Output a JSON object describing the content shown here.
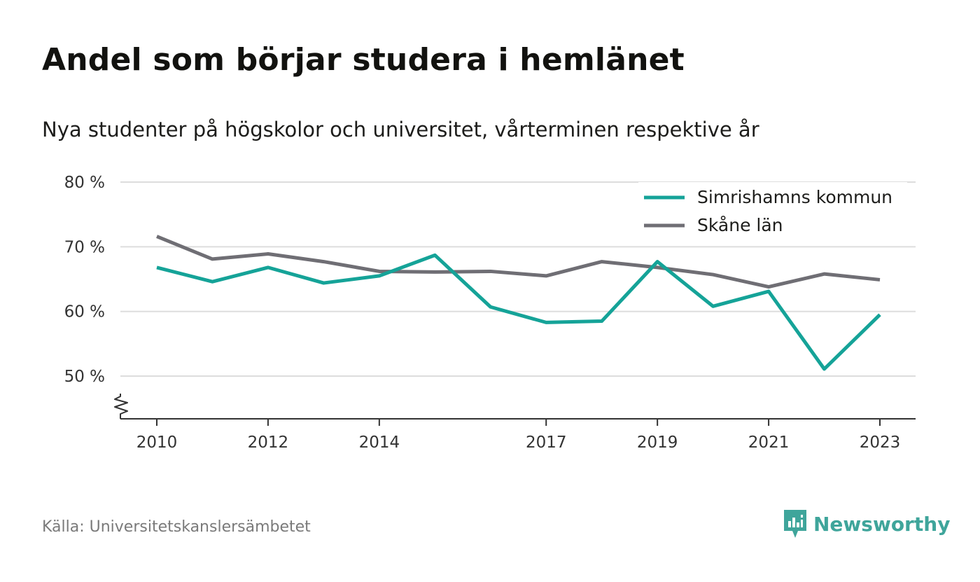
{
  "title": "Andel som börjar studera i hemlänet",
  "subtitle": "Nya studenter på högskolor och universitet, vårterminen respektive år",
  "source": "Källa: Universitetskanslersämbetet",
  "brand": {
    "name": "Newsworthy",
    "icon": "newsworthy-logo-icon",
    "color": "#3fa59b"
  },
  "chart_data": {
    "type": "line",
    "x": [
      2010,
      2011,
      2012,
      2013,
      2014,
      2015,
      2016,
      2017,
      2018,
      2019,
      2020,
      2021,
      2022,
      2023
    ],
    "x_tick_labels": [
      "2010",
      "2012",
      "2014",
      "2017",
      "2019",
      "2021",
      "2023"
    ],
    "y_ticks": [
      50,
      60,
      70,
      80
    ],
    "y_tick_labels": [
      "50 %",
      "60 %",
      "70 %",
      "80 %"
    ],
    "ylim": [
      43.4,
      80
    ],
    "y_axis_break": true,
    "grid": "horizontal",
    "legend_position": "top-right",
    "series": [
      {
        "name": "Simrishamns kommun",
        "color": "#15a398",
        "values": [
          66.8,
          64.6,
          66.8,
          64.4,
          65.5,
          68.7,
          60.7,
          58.3,
          58.5,
          67.7,
          60.8,
          63.1,
          51.1,
          59.5
        ]
      },
      {
        "name": "Skåne län",
        "color": "#6f6e74",
        "values": [
          71.6,
          68.1,
          68.9,
          67.7,
          66.2,
          66.1,
          66.2,
          65.5,
          67.7,
          66.8,
          65.7,
          63.8,
          65.8,
          64.9
        ]
      }
    ]
  }
}
